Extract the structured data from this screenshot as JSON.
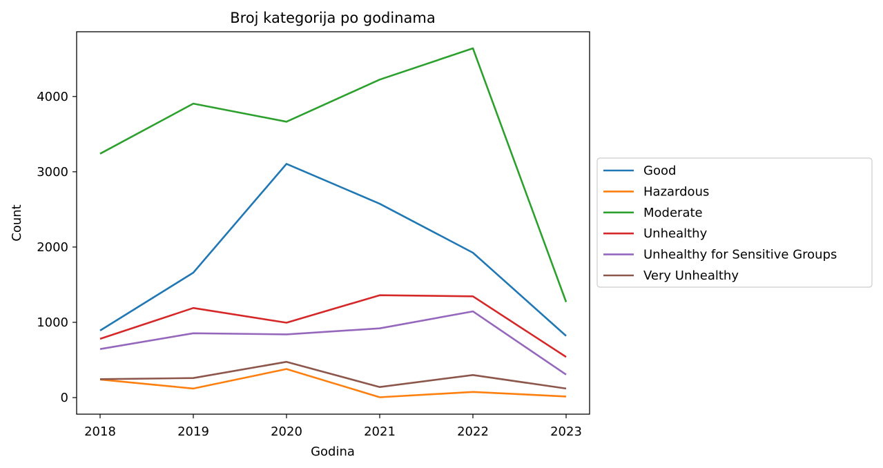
{
  "chart_data": {
    "type": "line",
    "title": "Broj kategorija po godinama",
    "xlabel": "Godina",
    "ylabel": "Count",
    "x": [
      "2018",
      "2019",
      "2020",
      "2021",
      "2022",
      "2023"
    ],
    "ylim": [
      -220,
      4860
    ],
    "yticks": [
      0,
      1000,
      2000,
      3000,
      4000
    ],
    "grid": false,
    "legend_position": "center-right outside",
    "series": [
      {
        "name": "Good",
        "color": "#1f77b4",
        "values": [
          890,
          1660,
          3105,
          2575,
          1925,
          820
        ]
      },
      {
        "name": "Hazardous",
        "color": "#ff7f0e",
        "values": [
          240,
          120,
          380,
          5,
          75,
          15
        ]
      },
      {
        "name": "Moderate",
        "color": "#2ca02c",
        "values": [
          3240,
          3905,
          3665,
          4225,
          4640,
          1270
        ]
      },
      {
        "name": "Unhealthy",
        "color": "#d62728",
        "values": [
          780,
          1190,
          995,
          1360,
          1345,
          540
        ]
      },
      {
        "name": "Unhealthy for Sensitive Groups",
        "color": "#9467bd",
        "values": [
          645,
          855,
          840,
          920,
          1145,
          305
        ]
      },
      {
        "name": "Very Unhealthy",
        "color": "#8c564b",
        "values": [
          245,
          260,
          475,
          140,
          300,
          120
        ]
      }
    ]
  }
}
